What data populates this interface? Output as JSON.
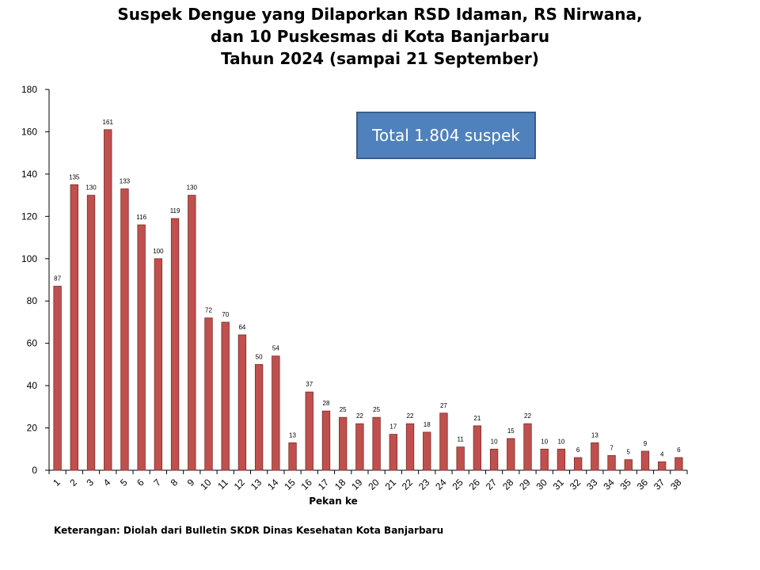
{
  "title_lines": [
    "Suspek Dengue yang Dilaporkan RSD Idaman, RS Nirwana,",
    "dan 10 Puskesmas di Kota Banjarbaru",
    "Tahun 2024 (sampai 21 September)"
  ],
  "total_label": "Total 1.804 suspek",
  "note": "Keterangan: Diolah dari Bulletin SKDR Dinas Kesehatan Kota Banjarbaru",
  "chart_data": {
    "type": "bar",
    "title": "Suspek Dengue yang Dilaporkan RSD Idaman, RS Nirwana, dan 10 Puskesmas di Kota Banjarbaru Tahun 2024 (sampai 21 September)",
    "xlabel": "Pekan ke",
    "ylabel": "",
    "ylim": [
      0,
      180
    ],
    "yticks": [
      0,
      20,
      40,
      60,
      80,
      100,
      120,
      140,
      160,
      180
    ],
    "categories": [
      "1",
      "2",
      "3",
      "4",
      "5",
      "6",
      "7",
      "8",
      "9",
      "10",
      "11",
      "12",
      "13",
      "14",
      "15",
      "16",
      "17",
      "18",
      "19",
      "20",
      "21",
      "22",
      "23",
      "24",
      "25",
      "26",
      "27",
      "28",
      "29",
      "30",
      "31",
      "32",
      "33",
      "34",
      "35",
      "36",
      "37",
      "38"
    ],
    "values": [
      87,
      135,
      130,
      161,
      133,
      116,
      100,
      119,
      130,
      72,
      70,
      64,
      50,
      54,
      13,
      37,
      28,
      25,
      22,
      25,
      17,
      22,
      18,
      27,
      11,
      21,
      10,
      15,
      22,
      10,
      10,
      6,
      13,
      7,
      5,
      9,
      4,
      6
    ],
    "bar_color": "#c0504d",
    "bar_edge_color": "#7b2c2a",
    "grid": false,
    "legend": "none"
  }
}
